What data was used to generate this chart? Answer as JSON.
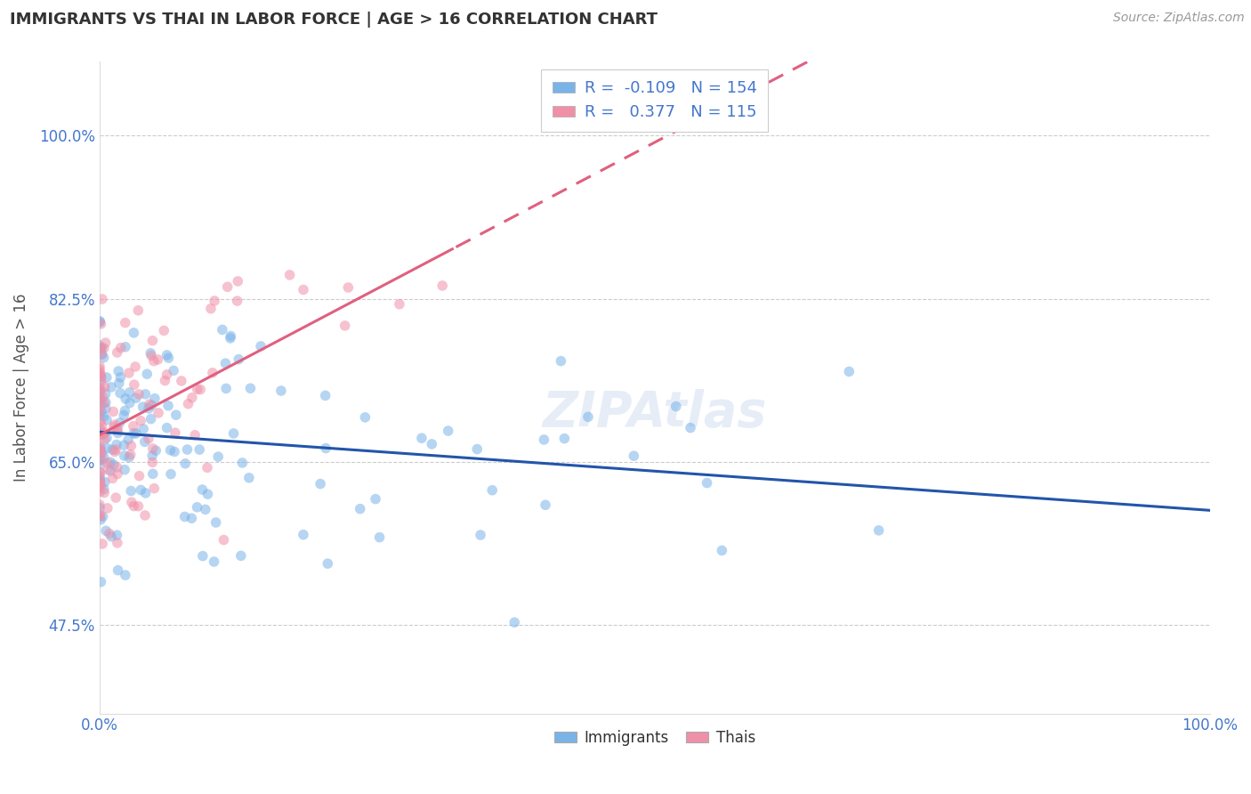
{
  "title": "IMMIGRANTS VS THAI IN LABOR FORCE | AGE > 16 CORRELATION CHART",
  "source": "Source: ZipAtlas.com",
  "ylabel": "In Labor Force | Age > 16",
  "xlim": [
    0.0,
    1.0
  ],
  "ylim": [
    0.38,
    1.08
  ],
  "ytick_positions": [
    0.475,
    0.65,
    0.825,
    1.0
  ],
  "ytick_labels": [
    "47.5%",
    "65.0%",
    "82.5%",
    "100.0%"
  ],
  "xtick_positions": [
    0.0,
    1.0
  ],
  "xtick_labels": [
    "0.0%",
    "100.0%"
  ],
  "immigrants_R": -0.109,
  "immigrants_N": 154,
  "thais_R": 0.377,
  "thais_N": 115,
  "immigrant_color": "#7ab3e8",
  "thai_color": "#f090a8",
  "immigrant_line_color": "#2255aa",
  "thai_line_color": "#e06080",
  "background_color": "#ffffff",
  "grid_color": "#cccccc",
  "title_color": "#333333",
  "tick_color": "#4477cc",
  "marker_size": 70,
  "marker_alpha": 0.55,
  "watermark_color": "#c8d8ee",
  "watermark_alpha": 0.45,
  "seed": 7
}
